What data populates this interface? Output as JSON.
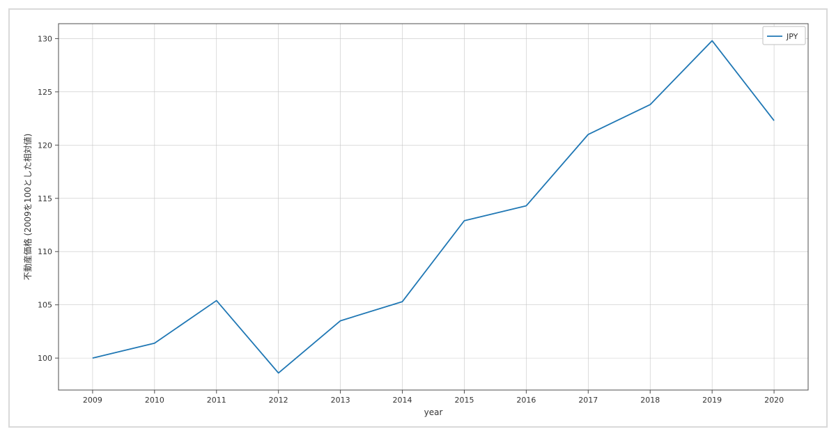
{
  "chart": {
    "type": "line",
    "series": [
      {
        "name": "JPY",
        "color": "#1f77b4",
        "line_width": 1.8,
        "x": [
          2009,
          2010,
          2011,
          2012,
          2013,
          2014,
          2015,
          2016,
          2017,
          2018,
          2019,
          2020
        ],
        "y": [
          100.0,
          101.4,
          105.4,
          98.6,
          103.5,
          105.3,
          112.9,
          114.3,
          121.0,
          123.8,
          129.8,
          122.3
        ]
      }
    ],
    "xlabel": "year",
    "ylabel": "不動産価格 (2009を100とした相対値)",
    "label_fontsize": 12,
    "tick_fontsize": 11,
    "x_ticks": [
      2009,
      2010,
      2011,
      2012,
      2013,
      2014,
      2015,
      2016,
      2017,
      2018,
      2019,
      2020
    ],
    "y_ticks": [
      100,
      105,
      110,
      115,
      120,
      125,
      130
    ],
    "xlim": [
      2008.45,
      2020.55
    ],
    "ylim": [
      97.0,
      131.4
    ],
    "background_color": "#ffffff",
    "grid_color": "#c6c6c6",
    "grid_width": 0.6,
    "spine_color": "#4d4d4d",
    "spine_width": 1.0,
    "legend": {
      "position": "upper-right",
      "border_color": "#bfbfbf",
      "background": "#ffffff",
      "font_size": 11
    }
  }
}
